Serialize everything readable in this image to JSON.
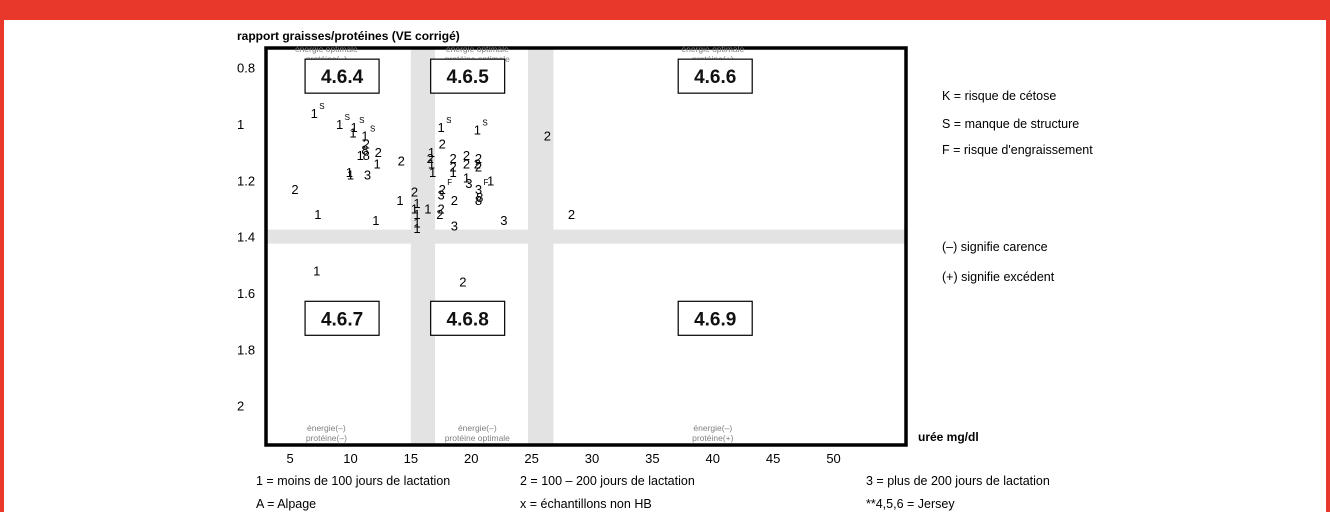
{
  "chart_data": {
    "type": "scatter",
    "ylabel": "rapport graisses/protéines (VE corrigé)",
    "xlabel": "urée mg/dl",
    "xlim": [
      3,
      56
    ],
    "ylim": [
      0.73,
      2.14
    ],
    "y_inverted": true,
    "x_ticks": [
      "5",
      "10",
      "15",
      "20",
      "25",
      "30",
      "35",
      "40",
      "45",
      "50"
    ],
    "y_ticks": [
      "0.8",
      "1",
      "1.2",
      "1.4",
      "1.6",
      "1.8",
      "2"
    ],
    "bands": [
      {
        "axis": "x",
        "from": 15,
        "to": 17
      },
      {
        "axis": "x",
        "from": 24.7,
        "to": 26.8
      },
      {
        "axis": "y",
        "from": 1.375,
        "to": 1.425
      }
    ],
    "zone_labels": [
      {
        "x": 8,
        "y": 0.745,
        "lines": [
          "énergie optimale",
          "protéine(–)"
        ]
      },
      {
        "x": 20.5,
        "y": 0.745,
        "lines": [
          "énergie optimale",
          "protéine optimale"
        ]
      },
      {
        "x": 40,
        "y": 0.745,
        "lines": [
          "énergie optimale",
          "protéine(+)"
        ]
      },
      {
        "x": 8,
        "y": 2.09,
        "lines": [
          "énergie(–)",
          "protéine(–)"
        ]
      },
      {
        "x": 20.5,
        "y": 2.09,
        "lines": [
          "énergie(–)",
          "protéine optimale"
        ]
      },
      {
        "x": 40,
        "y": 2.09,
        "lines": [
          "énergie(–)",
          "protéine(+)"
        ]
      }
    ],
    "region_labels": [
      {
        "text": "4.6.4",
        "x": 9.3,
        "y": 0.83
      },
      {
        "text": "4.6.5",
        "x": 19.7,
        "y": 0.83
      },
      {
        "text": "4.6.6",
        "x": 40.2,
        "y": 0.83
      },
      {
        "text": "4.6.7",
        "x": 9.3,
        "y": 1.69
      },
      {
        "text": "4.6.8",
        "x": 19.7,
        "y": 1.69
      },
      {
        "text": "4.6.9",
        "x": 40.2,
        "y": 1.69
      }
    ],
    "points": [
      {
        "x": 7,
        "y": 0.96,
        "label": "1",
        "tag": "S"
      },
      {
        "x": 9.1,
        "y": 1.0,
        "label": "1",
        "tag": "S"
      },
      {
        "x": 10.3,
        "y": 1.01,
        "label": "1",
        "tag": "S"
      },
      {
        "x": 10.2,
        "y": 1.03,
        "label": "1",
        "tag": ""
      },
      {
        "x": 11.2,
        "y": 1.04,
        "label": "1",
        "tag": "S"
      },
      {
        "x": 11.3,
        "y": 1.07,
        "label": "2",
        "tag": ""
      },
      {
        "x": 10.8,
        "y": 1.11,
        "label": "1",
        "tag": ""
      },
      {
        "x": 11.2,
        "y": 1.09,
        "label": "8",
        "tag": ""
      },
      {
        "x": 11.3,
        "y": 1.11,
        "label": "8",
        "tag": ""
      },
      {
        "x": 12.3,
        "y": 1.1,
        "label": "2",
        "tag": ""
      },
      {
        "x": 12.2,
        "y": 1.14,
        "label": "1",
        "tag": ""
      },
      {
        "x": 9.9,
        "y": 1.17,
        "label": "1",
        "tag": ""
      },
      {
        "x": 10,
        "y": 1.18,
        "label": "1",
        "tag": ""
      },
      {
        "x": 11.4,
        "y": 1.18,
        "label": "3",
        "tag": ""
      },
      {
        "x": 14.2,
        "y": 1.13,
        "label": "2",
        "tag": ""
      },
      {
        "x": 5.4,
        "y": 1.23,
        "label": "2",
        "tag": ""
      },
      {
        "x": 7.3,
        "y": 1.32,
        "label": "1",
        "tag": ""
      },
      {
        "x": 12.1,
        "y": 1.34,
        "label": "1",
        "tag": ""
      },
      {
        "x": 14.1,
        "y": 1.27,
        "label": "1",
        "tag": ""
      },
      {
        "x": 15.3,
        "y": 1.24,
        "label": "2",
        "tag": ""
      },
      {
        "x": 15.5,
        "y": 1.28,
        "label": "1",
        "tag": ""
      },
      {
        "x": 15.3,
        "y": 1.3,
        "label": "1",
        "tag": ""
      },
      {
        "x": 15.5,
        "y": 1.32,
        "label": "1",
        "tag": ""
      },
      {
        "x": 15.5,
        "y": 1.35,
        "label": "1",
        "tag": ""
      },
      {
        "x": 15.5,
        "y": 1.37,
        "label": "1",
        "tag": ""
      },
      {
        "x": 16.4,
        "y": 1.3,
        "label": "1",
        "tag": ""
      },
      {
        "x": 16.6,
        "y": 1.12,
        "label": "2",
        "tag": ""
      },
      {
        "x": 16.7,
        "y": 1.1,
        "label": "1",
        "tag": ""
      },
      {
        "x": 16.7,
        "y": 1.14,
        "label": "1",
        "tag": ""
      },
      {
        "x": 16.8,
        "y": 1.17,
        "label": "1",
        "tag": ""
      },
      {
        "x": 17.5,
        "y": 1.01,
        "label": "1",
        "tag": "S"
      },
      {
        "x": 17.6,
        "y": 1.07,
        "label": "2",
        "tag": ""
      },
      {
        "x": 17.6,
        "y": 1.23,
        "label": "2",
        "tag": "F"
      },
      {
        "x": 17.5,
        "y": 1.25,
        "label": "3",
        "tag": ""
      },
      {
        "x": 17.5,
        "y": 1.3,
        "label": "2",
        "tag": ""
      },
      {
        "x": 17.4,
        "y": 1.32,
        "label": "2",
        "tag": ""
      },
      {
        "x": 18.5,
        "y": 1.12,
        "label": "2",
        "tag": ""
      },
      {
        "x": 18.5,
        "y": 1.15,
        "label": "2",
        "tag": ""
      },
      {
        "x": 18.5,
        "y": 1.17,
        "label": "1",
        "tag": ""
      },
      {
        "x": 18.6,
        "y": 1.27,
        "label": "2",
        "tag": ""
      },
      {
        "x": 18.6,
        "y": 1.36,
        "label": "3",
        "tag": ""
      },
      {
        "x": 19.6,
        "y": 1.11,
        "label": "2",
        "tag": ""
      },
      {
        "x": 19.6,
        "y": 1.14,
        "label": "2",
        "tag": ""
      },
      {
        "x": 19.6,
        "y": 1.19,
        "label": "1",
        "tag": ""
      },
      {
        "x": 19.8,
        "y": 1.21,
        "label": "3",
        "tag": ""
      },
      {
        "x": 20.5,
        "y": 1.02,
        "label": "1",
        "tag": "S"
      },
      {
        "x": 20.6,
        "y": 1.12,
        "label": "2",
        "tag": ""
      },
      {
        "x": 20.5,
        "y": 1.14,
        "label": "2",
        "tag": ""
      },
      {
        "x": 20.6,
        "y": 1.15,
        "label": "2",
        "tag": ""
      },
      {
        "x": 21.6,
        "y": 1.2,
        "label": "1",
        "tag": ""
      },
      {
        "x": 20.6,
        "y": 1.23,
        "label": "3",
        "tag": "F"
      },
      {
        "x": 20.7,
        "y": 1.26,
        "label": "8",
        "tag": ""
      },
      {
        "x": 20.6,
        "y": 1.27,
        "label": "8",
        "tag": ""
      },
      {
        "x": 22.7,
        "y": 1.34,
        "label": "3",
        "tag": ""
      },
      {
        "x": 26.3,
        "y": 1.04,
        "label": "2",
        "tag": ""
      },
      {
        "x": 28.3,
        "y": 1.32,
        "label": "2",
        "tag": ""
      },
      {
        "x": 7.2,
        "y": 1.52,
        "label": "1",
        "tag": ""
      },
      {
        "x": 19.3,
        "y": 1.56,
        "label": "2",
        "tag": ""
      }
    ],
    "side_legend": [
      "K = risque de cétose",
      "S = manque de structure",
      "F = risque d'engraissement",
      "(–) signifie carence",
      "(+) signifie excédent"
    ],
    "bottom_legend": [
      "1 = moins de 100 jours de lactation",
      "2 = 100 – 200 jours de lactation",
      "3 = plus de 200 jours de lactation",
      "A = Alpage",
      "x = échantillons non HB",
      "**4,5,6 = Jersey"
    ]
  }
}
